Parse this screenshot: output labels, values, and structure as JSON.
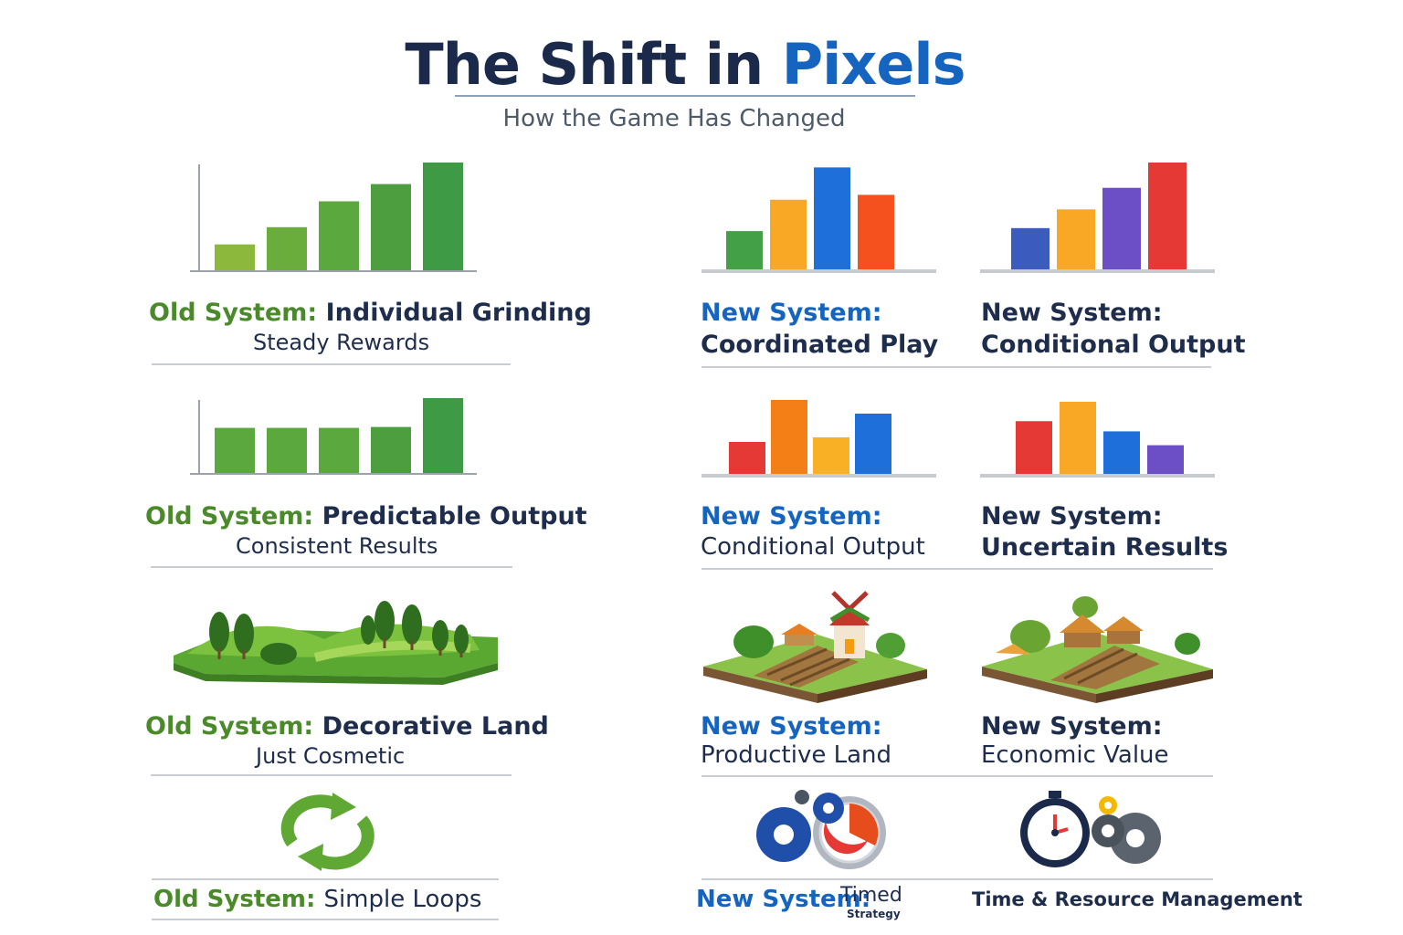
{
  "header": {
    "title_part1": "The Shift in ",
    "title_part2": "Pixels",
    "subtitle": "How the Game Has Changed"
  },
  "colors": {
    "old_green": "#4a8a2a",
    "new_blue": "#1565c0",
    "navy": "#1f2d4d"
  },
  "rows": [
    {
      "old": {
        "prefix": "Old System:",
        "title": "Individual Grinding",
        "subtitle": "Steady Rewards"
      },
      "new1": {
        "prefix": "New System:",
        "title": "Coordinated Play"
      },
      "new2": {
        "prefix": "New System:",
        "title": "Conditional Output"
      }
    },
    {
      "old": {
        "prefix": "Old System:",
        "title": "Predictable Output",
        "subtitle": "Consistent Results"
      },
      "new1": {
        "prefix": "New System:",
        "title": "Conditional Output"
      },
      "new2": {
        "prefix": "New System:",
        "title": "Uncertain Results"
      }
    },
    {
      "old": {
        "prefix": "Old System:",
        "title": "Decorative Land",
        "subtitle": "Just Cosmetic"
      },
      "new1": {
        "prefix": "New System:",
        "title": "Productive Land"
      },
      "new2": {
        "prefix": "New System:",
        "title": "Economic Value"
      }
    },
    {
      "old": {
        "prefix": "Old System",
        "colon": ":",
        "title": "Simple Loops"
      },
      "new1": {
        "prefix": "New System:",
        "title": "Timed",
        "title_small": "Strategy"
      },
      "new2": {
        "title": "Time & Resource Management"
      }
    }
  ],
  "icons": {
    "row3_old": "green-hills-trees-icon",
    "row3_new1": "farm-windmill-icon",
    "row3_new2": "farm-village-icon",
    "row4_old": "recycle-arrows-icon",
    "row4_new1": "gears-timer-icon",
    "row4_new2": "stopwatch-gears-icon"
  },
  "chart_data": [
    {
      "type": "bar",
      "name_hint": "old-steady",
      "values": [
        3,
        5,
        8,
        10,
        12.5
      ],
      "colors": [
        "#8cb83c",
        "#6aad3d",
        "#5ba83f",
        "#4d9e3e",
        "#3e9a45"
      ]
    },
    {
      "type": "bar",
      "name_hint": "new-coordinated",
      "values": [
        4,
        7.2,
        10.5,
        7.7
      ],
      "colors": [
        "#43a047",
        "#f9a825",
        "#1e6fd9",
        "#f4511e"
      ]
    },
    {
      "type": "bar",
      "name_hint": "new-conditional-1",
      "values": [
        4.5,
        6.5,
        8.8,
        11.5
      ],
      "colors": [
        "#3b5bbf",
        "#f9a825",
        "#6c4fc7",
        "#e53935"
      ]
    },
    {
      "type": "bar",
      "name_hint": "old-predictable",
      "values": [
        5,
        5,
        5,
        5.1,
        8.3
      ],
      "colors": [
        "#5ba83f",
        "#5ba83f",
        "#5ba83f",
        "#4d9e3e",
        "#3e9a45"
      ]
    },
    {
      "type": "bar",
      "name_hint": "new-conditional-2",
      "values": [
        3.6,
        8.2,
        4.1,
        6.7
      ],
      "colors": [
        "#e53935",
        "#f57f17",
        "#f9b025",
        "#1e6fd9"
      ]
    },
    {
      "type": "bar",
      "name_hint": "new-uncertain",
      "values": [
        5.8,
        7.9,
        4.7,
        3.2
      ],
      "colors": [
        "#e53935",
        "#f9a825",
        "#1e6fd9",
        "#6c4fc7"
      ]
    }
  ]
}
